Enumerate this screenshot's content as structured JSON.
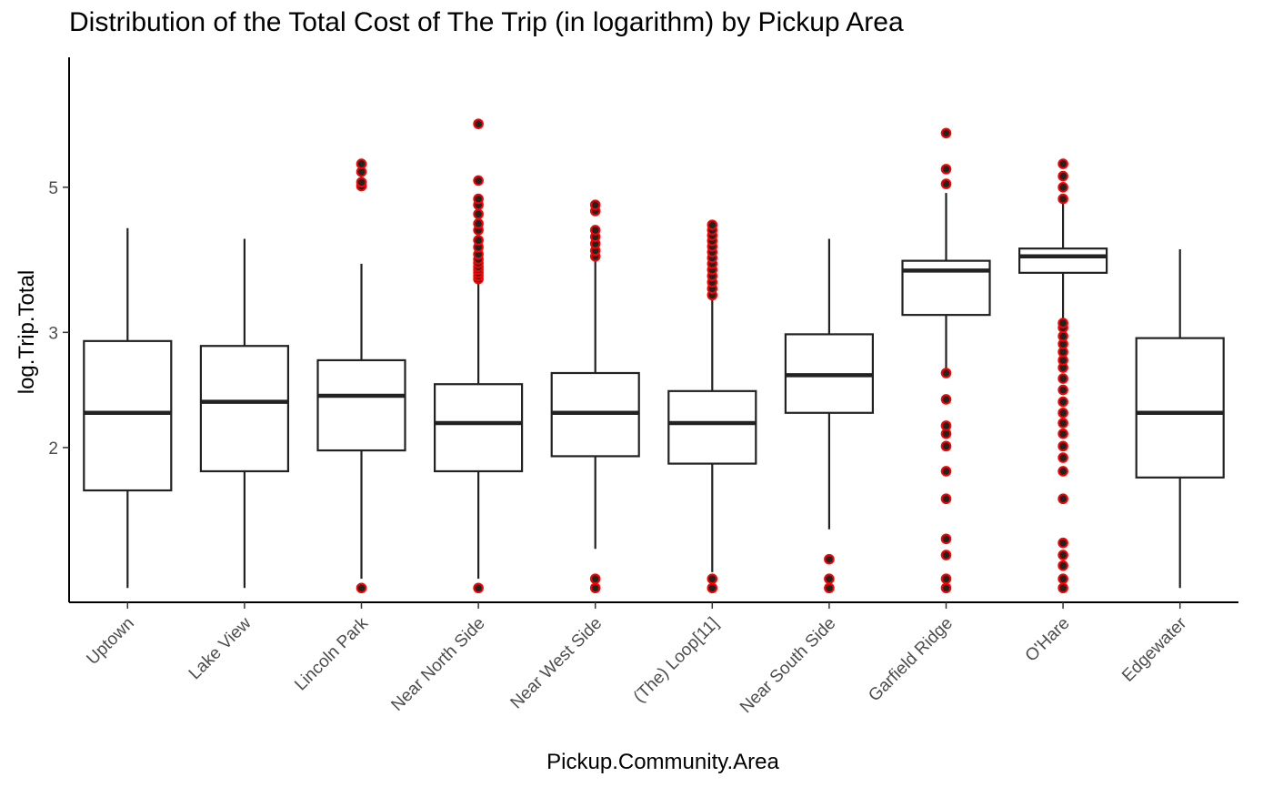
{
  "chart_data": {
    "type": "boxplot",
    "title": "Distribution of the Total Cost of The Trip (in logarithm) by Pickup Area",
    "xlabel": "Pickup.Community.Area",
    "ylabel": "log.Trip.Total",
    "y_scale": "log",
    "y_ticks": [
      2,
      3,
      5
    ],
    "ylim": [
      1.16,
      7.9
    ],
    "grid": false,
    "colors": {
      "box_line": "#222222",
      "box_fill": "#ffffff",
      "outlier_fill": "#222222",
      "outlier_edge": "#ff0000"
    },
    "categories": [
      "Uptown",
      "Lake View",
      "Lincoln Park",
      "Near North Side",
      "Near West Side",
      "(The)  Loop[11]",
      "Near South Side",
      "Garfield Ridge",
      "O'Hare",
      "Edgewater"
    ],
    "boxes": [
      {
        "category": "Uptown",
        "whisker_low": 1.22,
        "q1": 1.72,
        "median": 2.26,
        "q3": 2.91,
        "whisker_high": 4.33,
        "outliers": []
      },
      {
        "category": "Lake View",
        "whisker_low": 1.22,
        "q1": 1.84,
        "median": 2.35,
        "q3": 2.86,
        "whisker_high": 4.17,
        "outliers": []
      },
      {
        "category": "Lincoln Park",
        "whisker_low": 1.26,
        "q1": 1.98,
        "median": 2.4,
        "q3": 2.72,
        "whisker_high": 3.82,
        "outliers": [
          1.22,
          5.02,
          5.09,
          5.28,
          5.43
        ]
      },
      {
        "category": "Near North Side",
        "whisker_low": 1.26,
        "q1": 1.84,
        "median": 2.18,
        "q3": 2.5,
        "whisker_high": 3.62,
        "outliers": [
          1.22,
          3.62,
          3.66,
          3.7,
          3.74,
          3.78,
          3.83,
          3.88,
          3.95,
          4.05,
          4.15,
          4.3,
          4.4,
          4.55,
          4.7,
          4.8,
          5.12,
          6.25
        ]
      },
      {
        "category": "Near West Side",
        "whisker_low": 1.4,
        "q1": 1.94,
        "median": 2.26,
        "q3": 2.6,
        "whisker_high": 3.88,
        "outliers": [
          1.22,
          1.26,
          3.92,
          4.0,
          4.1,
          4.2,
          4.3,
          4.6,
          4.7
        ]
      },
      {
        "category": "(The)  Loop[11]",
        "whisker_low": 1.29,
        "q1": 1.89,
        "median": 2.18,
        "q3": 2.44,
        "whisker_high": 3.4,
        "outliers": [
          1.22,
          1.26,
          3.42,
          3.5,
          3.58,
          3.66,
          3.74,
          3.82,
          3.9,
          3.98,
          4.06,
          4.14,
          4.22,
          4.3,
          4.38
        ]
      },
      {
        "category": "Near South Side",
        "whisker_low": 1.5,
        "q1": 2.26,
        "median": 2.58,
        "q3": 2.98,
        "whisker_high": 4.17,
        "outliers": [
          1.22,
          1.26,
          1.35
        ]
      },
      {
        "category": "Garfield Ridge",
        "whisker_low": 2.6,
        "q1": 3.19,
        "median": 3.73,
        "q3": 3.86,
        "whisker_high": 4.9,
        "outliers": [
          1.22,
          1.26,
          1.37,
          1.45,
          1.67,
          1.84,
          2.01,
          2.1,
          2.16,
          2.37,
          2.6,
          5.06,
          5.33,
          6.05
        ]
      },
      {
        "category": "O'Hare",
        "whisker_low": 3.12,
        "q1": 3.7,
        "median": 3.92,
        "q3": 4.03,
        "whisker_high": 4.72,
        "outliers": [
          1.22,
          1.26,
          1.32,
          1.37,
          1.43,
          1.67,
          1.84,
          1.93,
          2.01,
          2.1,
          2.18,
          2.26,
          2.35,
          2.45,
          2.55,
          2.65,
          2.72,
          2.8,
          2.88,
          2.96,
          3.05,
          3.1,
          4.8,
          5.0,
          5.2,
          5.43
        ]
      },
      {
        "category": "Edgewater",
        "whisker_low": 1.22,
        "q1": 1.8,
        "median": 2.26,
        "q3": 2.94,
        "whisker_high": 4.02,
        "outliers": []
      }
    ]
  }
}
